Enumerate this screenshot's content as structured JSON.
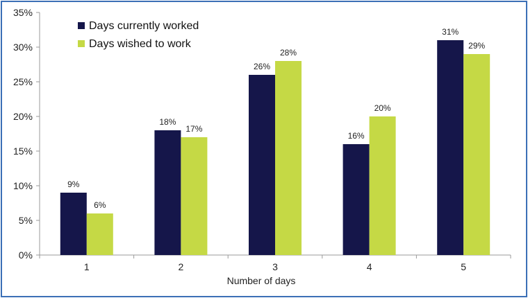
{
  "chart_data": {
    "type": "bar",
    "title": "",
    "xlabel": "Number of days",
    "ylabel": "",
    "ylim": [
      0,
      35
    ],
    "yticks": [
      0,
      5,
      10,
      15,
      20,
      25,
      30,
      35
    ],
    "ytick_labels": [
      "0%",
      "5%",
      "10%",
      "15%",
      "20%",
      "25%",
      "30%",
      "35%"
    ],
    "categories": [
      "1",
      "2",
      "3",
      "4",
      "5"
    ],
    "series": [
      {
        "name": "Days currently worked",
        "color": "#15164a",
        "values": [
          9,
          18,
          26,
          16,
          31
        ],
        "labels": [
          "9%",
          "18%",
          "26%",
          "16%",
          "31%"
        ]
      },
      {
        "name": "Days wished to work",
        "color": "#c5d945",
        "values": [
          6,
          17,
          28,
          20,
          29
        ],
        "labels": [
          "6%",
          "17%",
          "28%",
          "20%",
          "29%"
        ]
      }
    ],
    "grid": false,
    "legend_position": "top-left"
  }
}
